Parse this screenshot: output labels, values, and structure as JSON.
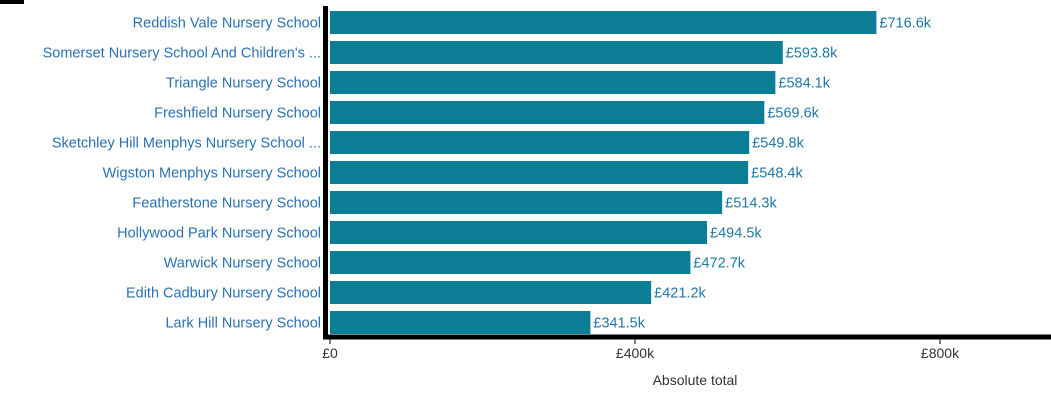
{
  "colors": {
    "bar": "#0b7e95",
    "category_label": "#2a71b3",
    "value_label": "#1f78a7",
    "axis": "#000000",
    "tick_label": "#333333"
  },
  "chart_data": {
    "type": "bar",
    "orientation": "horizontal",
    "title": "",
    "categories": [
      "Reddish Vale Nursery School",
      "Somerset Nursery School And Children's ...",
      "Triangle Nursery School",
      "Freshfield Nursery School",
      "Sketchley Hill Menphys Nursery School ...",
      "Wigston Menphys Nursery School",
      "Featherstone Nursery School",
      "Hollywood Park Nursery School",
      "Warwick Nursery School",
      "Edith Cadbury Nursery School",
      "Lark Hill Nursery School"
    ],
    "values": [
      716.6,
      593.8,
      584.1,
      569.6,
      549.8,
      548.4,
      514.3,
      494.5,
      472.7,
      421.2,
      341.5
    ],
    "value_labels": [
      "£716.6k",
      "£593.8k",
      "£584.1k",
      "£569.6k",
      "£549.8k",
      "£548.4k",
      "£514.3k",
      "£494.5k",
      "£472.7k",
      "£421.2k",
      "£341.5k"
    ],
    "xlabel": "Absolute total",
    "ylabel": "",
    "xlim": [
      0,
      940
    ],
    "x_ticks": [
      0,
      400,
      800
    ],
    "x_tick_labels": [
      "£0",
      "£400k",
      "£800k"
    ],
    "grid": false
  }
}
